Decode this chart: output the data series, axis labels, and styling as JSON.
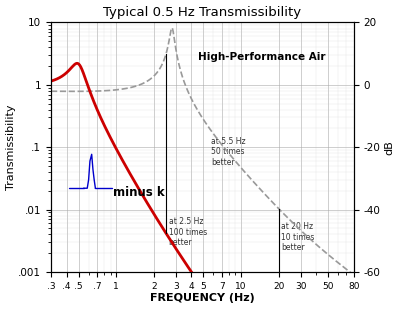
{
  "title": "Typical 0.5 Hz Transmissibility",
  "xlabel": "FREQUENCY (Hz)",
  "ylabel": "Transmissibility",
  "ylabel_right": "dB",
  "background_color": "#ffffff",
  "plot_bg_color": "#ffffff",
  "red_line_color": "#cc0000",
  "gray_line_color": "#999999",
  "minus_k_color": "#0000cc",
  "annotation_color": "#333333",
  "annotation1_text": "at 2.5 Hz\n100 times\nbetter",
  "annotation2_text": "at 5.5 Hz\n50 times\nbetter",
  "annotation3_text": "at 20 Hz\n10 times\nbetter",
  "label_hp_air": "High-Performance Air",
  "xmin": 0.3,
  "xmax": 80,
  "ymin": 0.001,
  "ymax": 10,
  "yticks_left": [
    0.001,
    0.01,
    0.1,
    1,
    10
  ],
  "ytick_labels_left": [
    ".001",
    ".01",
    ".1",
    "1",
    "10"
  ],
  "xticks": [
    0.3,
    0.4,
    0.5,
    0.7,
    1,
    2,
    3,
    4,
    5,
    7,
    10,
    20,
    30,
    50,
    80
  ],
  "xtick_labels": [
    ".3",
    ".4",
    ".5",
    ".7",
    "1",
    "2",
    "3",
    "4",
    "5",
    "7",
    "10",
    "20",
    "30",
    "50",
    "80"
  ],
  "yticks_right_labels": [
    "20",
    "0",
    "-20",
    "-40",
    "-60"
  ],
  "ytick_vals_right": [
    10,
    1,
    0.1,
    0.01,
    0.001
  ]
}
